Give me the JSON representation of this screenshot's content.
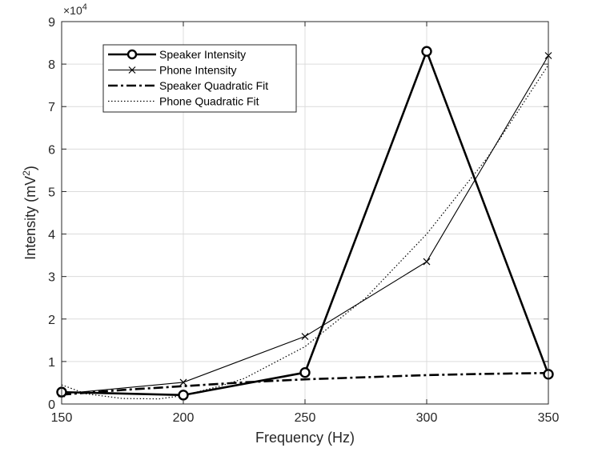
{
  "chart_data": {
    "type": "line",
    "xlabel": "Frequency (Hz)",
    "ylabel_main": "Intensity  (mV",
    "ylabel_sup": "2",
    "ylabel_close": ")",
    "x_ticks": [
      150,
      200,
      250,
      300,
      350
    ],
    "y_ticks": [
      0,
      1,
      2,
      3,
      4,
      5,
      6,
      7,
      8,
      9
    ],
    "y_exponent_base": "×10",
    "y_exponent_power": "4",
    "xlim": [
      150,
      350
    ],
    "ylim": [
      0,
      9
    ],
    "y_scale": 10000,
    "grid": true,
    "legend_position": "top-left",
    "series": [
      {
        "name": "Speaker Intensity",
        "style": "solid-thick-circle",
        "color": "#000000",
        "x": [
          150,
          200,
          250,
          300,
          350
        ],
        "y": [
          2800,
          2100,
          7400,
          83000,
          7000
        ]
      },
      {
        "name": "Phone Intensity",
        "style": "solid-thin-x",
        "color": "#000000",
        "x": [
          150,
          200,
          250,
          300,
          350
        ],
        "y": [
          2400,
          5100,
          15900,
          33500,
          82000
        ]
      },
      {
        "name": "Speaker Quadratic Fit",
        "style": "dashed-thick",
        "color": "#000000",
        "x": [
          150,
          175,
          200,
          225,
          250,
          275,
          300,
          325,
          350
        ],
        "y": [
          2200,
          3300,
          4200,
          5100,
          5800,
          6300,
          6800,
          7100,
          7300
        ]
      },
      {
        "name": "Phone Quadratic Fit",
        "style": "dotted",
        "color": "#000000",
        "x": [
          150,
          160,
          175,
          190,
          200,
          215,
          225,
          250,
          275,
          300,
          325,
          350
        ],
        "y": [
          4500,
          2400,
          1300,
          1200,
          2000,
          4200,
          6000,
          13500,
          25000,
          40000,
          58000,
          79800
        ]
      }
    ]
  }
}
